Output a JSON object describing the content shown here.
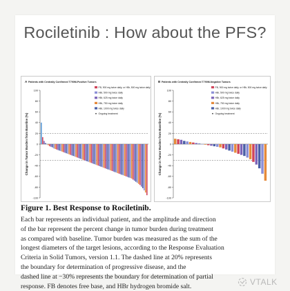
{
  "slide_title": "Rociletinib : How about the PFS?",
  "caption": {
    "title": "Figure 1. Best Response to Rociletinib.",
    "lines": [
      "Each bar represents an individual patient, and the amplitude and direction",
      "of the bar represent the percent change in tumor burden during treatment",
      "as compared with baseline. Tumor burden was measured as the sum of the",
      "longest diameters of the target lesions, according to the Response Evaluation",
      "Criteria in Solid Tumors, version 1.1. The dashed line at 20% represents",
      "the boundary for determination of progressive disease, and the",
      "dashed line at −30% represents the boundary for determination of partial",
      "response. FB denotes free base, and HBr hydrogen bromide salt."
    ]
  },
  "watermark": {
    "icon": "vtalk-logo-icon",
    "text": "VTALK"
  },
  "colors": {
    "fb900": "#d0445a",
    "hbr500": "#8a8ed6",
    "hbr625": "#7b63b8",
    "hbr750": "#e58a3a",
    "hbr1000": "#4a5fa6",
    "baseline": "#5a9ad8"
  },
  "chart_data": [
    {
      "type": "bar",
      "panel_label": "A",
      "title": "Patients with Centrally Confirmed T790M-Positive Tumors",
      "ylabel": "Change in Tumor Burden from Baseline (%)",
      "ylim": [
        -100,
        100
      ],
      "yticks": [
        100,
        80,
        60,
        40,
        20,
        0,
        -20,
        -40,
        -60,
        -80,
        -100
      ],
      "reference_lines": [
        20,
        -30
      ],
      "legend_position": "top-right",
      "legend": [
        {
          "label": "FB, 900 mg twice daily, or HBr, 500 mg twice daily",
          "color_key": "fb900"
        },
        {
          "label": "HBr, 500 mg twice daily",
          "color_key": "hbr500"
        },
        {
          "label": "HBr, 625 mg twice daily",
          "color_key": "hbr625"
        },
        {
          "label": "HBr, 750 mg twice daily",
          "color_key": "hbr750"
        },
        {
          "label": "HBr, 1000 mg twice daily",
          "color_key": "hbr1000"
        },
        {
          "label": "Ongoing treatment",
          "color_key": "marker"
        }
      ],
      "series_palette": [
        "fb900",
        "hbr500",
        "hbr625",
        "hbr750",
        "hbr1000"
      ],
      "values": [
        40,
        13,
        6,
        2,
        0,
        -2,
        -4,
        -5,
        -6,
        -8,
        -9,
        -10,
        -11,
        -12,
        -13,
        -14,
        -15,
        -16,
        -17,
        -18,
        -19,
        -20,
        -21,
        -22,
        -23,
        -24,
        -25,
        -26,
        -27,
        -28,
        -29,
        -30,
        -31,
        -32,
        -33,
        -34,
        -35,
        -36,
        -37,
        -38,
        -39,
        -40,
        -41,
        -42,
        -43,
        -44,
        -45,
        -46,
        -47,
        -48,
        -49,
        -50,
        -51,
        -52,
        -53,
        -54,
        -55,
        -56,
        -57,
        -58,
        -59,
        -60,
        -61,
        -62,
        -63,
        -64,
        -66,
        -68,
        -70,
        -72,
        -74,
        -76,
        -79,
        -82,
        -86,
        -90,
        -95
      ]
    },
    {
      "type": "bar",
      "panel_label": "B",
      "title": "Patients with Centrally Confirmed T790M-Negative Tumors",
      "ylabel": "Change in Tumor Burden from Baseline (%)",
      "ylim": [
        -100,
        100
      ],
      "yticks": [
        100,
        80,
        60,
        40,
        20,
        0,
        -20,
        -40,
        -60,
        -80,
        -100
      ],
      "reference_lines": [
        20,
        -30
      ],
      "legend_position": "top-right",
      "legend": [
        {
          "label": "FB, 900 mg twice daily, or HBr, 500 mg twice daily",
          "color_key": "fb900"
        },
        {
          "label": "HBr, 500 mg twice daily",
          "color_key": "hbr500"
        },
        {
          "label": "HBr, 625 mg twice daily",
          "color_key": "hbr625"
        },
        {
          "label": "HBr, 750 mg twice daily",
          "color_key": "hbr750"
        },
        {
          "label": "HBr, 1000 mg twice daily",
          "color_key": "hbr1000"
        },
        {
          "label": "Ongoing treatment",
          "color_key": "marker"
        }
      ],
      "series_palette": [
        "fb900",
        "hbr500",
        "hbr625",
        "hbr750",
        "hbr1000"
      ],
      "values": [
        10,
        9,
        8,
        6,
        5,
        4,
        3,
        2,
        1,
        0,
        -1,
        -2,
        -3,
        -4,
        -5,
        -6,
        -8,
        -10,
        -12,
        -14,
        -16,
        -18,
        -20,
        -22,
        -25,
        -28,
        -33,
        -38,
        -45,
        -55,
        -68
      ]
    }
  ]
}
